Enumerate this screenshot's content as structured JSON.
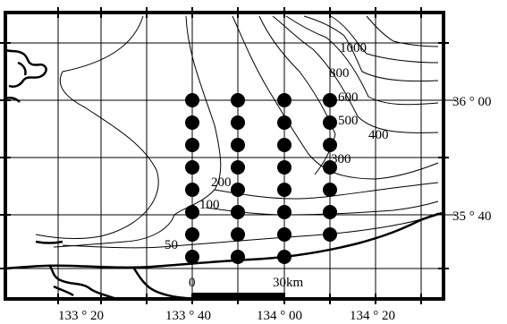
{
  "map": {
    "lat_labels": [
      {
        "text": "36 ° 00"
      },
      {
        "text": "35 ° 40"
      }
    ],
    "lon_labels": [
      {
        "text": "133 ° 20"
      },
      {
        "text": "133 ° 40"
      },
      {
        "text": "134 ° 00"
      },
      {
        "text": "134 ° 20"
      }
    ],
    "depth_labels": [
      "1000",
      "800",
      "600",
      "500",
      "400",
      "300",
      "200",
      "100",
      "50"
    ],
    "scale_bar": {
      "start_label": "0",
      "end_label": "30km"
    },
    "stations": {
      "columns": 4,
      "rows": [
        8,
        8,
        8,
        7
      ]
    }
  }
}
